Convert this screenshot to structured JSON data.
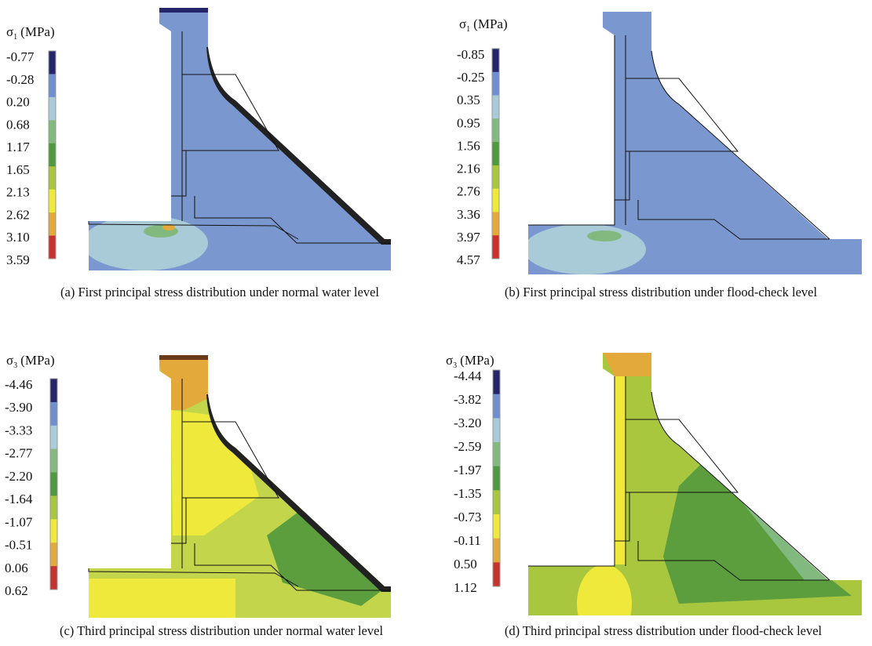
{
  "panels": [
    {
      "legend": {
        "symbol": "σ",
        "subscript": "1",
        "unit": "(MPa)",
        "labels": [
          "-0.77",
          "-0.28",
          "0.20",
          "0.68",
          "1.17",
          "1.65",
          "2.13",
          "2.62",
          "3.10",
          "3.59"
        ]
      },
      "caption": "(a) First principal stress distribution under normal water level"
    },
    {
      "legend": {
        "symbol": "σ",
        "subscript": "1",
        "unit": "(MPa)",
        "labels": [
          "-0.85",
          "-0.25",
          "0.35",
          "0.95",
          "1.56",
          "2.16",
          "2.76",
          "3.36",
          "3.97",
          "4.57"
        ]
      },
      "caption": "(b) First principal stress distribution under flood-check level"
    },
    {
      "legend": {
        "symbol": "σ",
        "subscript": "3",
        "unit": "(MPa)",
        "labels": [
          "-4.46",
          "-3.90",
          "-3.33",
          "-2.77",
          "-2.20",
          "-1.64",
          "-1.07",
          "-0.51",
          "0.06",
          "0.62"
        ]
      },
      "caption": "(c) Third principal stress distribution under normal water level"
    },
    {
      "legend": {
        "symbol": "σ",
        "subscript": "3",
        "unit": "(MPa)",
        "labels": [
          "-4.44",
          "-3.82",
          "-3.20",
          "-2.59",
          "-1.97",
          "-1.35",
          "-0.73",
          "-0.11",
          "0.50",
          "1.12"
        ]
      },
      "caption": "(d) Third principal stress distribution under flood-check level"
    }
  ],
  "colorbar_colors": [
    "#25266a",
    "#6f8fd0",
    "#a9cbd8",
    "#82b97e",
    "#4f9a3e",
    "#a8c63e",
    "#efe93c",
    "#e3a93a",
    "#c8322e"
  ]
}
